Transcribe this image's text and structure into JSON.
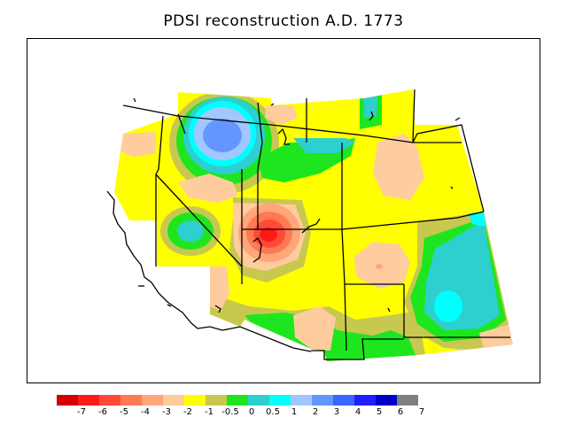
{
  "title": "PDSI reconstruction A.D. 1773",
  "legend": {
    "colors": [
      "#d40000",
      "#ff1a1a",
      "#ff4a3a",
      "#ff7a52",
      "#ffa67a",
      "#ffcc9e",
      "#ffff00",
      "#c8c850",
      "#1ee61e",
      "#2ecfcf",
      "#00ffff",
      "#a0c8ff",
      "#6496ff",
      "#3c64ff",
      "#1e1eff",
      "#0000c8",
      "#7f7f7f"
    ],
    "labels": [
      "-7",
      "-6",
      "-5",
      "-4",
      "-3",
      "-2",
      "-1",
      "-0.5",
      "0",
      "0.5",
      "1",
      "2",
      "3",
      "4",
      "5",
      "6",
      "7"
    ]
  },
  "map": {
    "base_color": "#ffff00",
    "ocean_color": "#ffffff"
  }
}
